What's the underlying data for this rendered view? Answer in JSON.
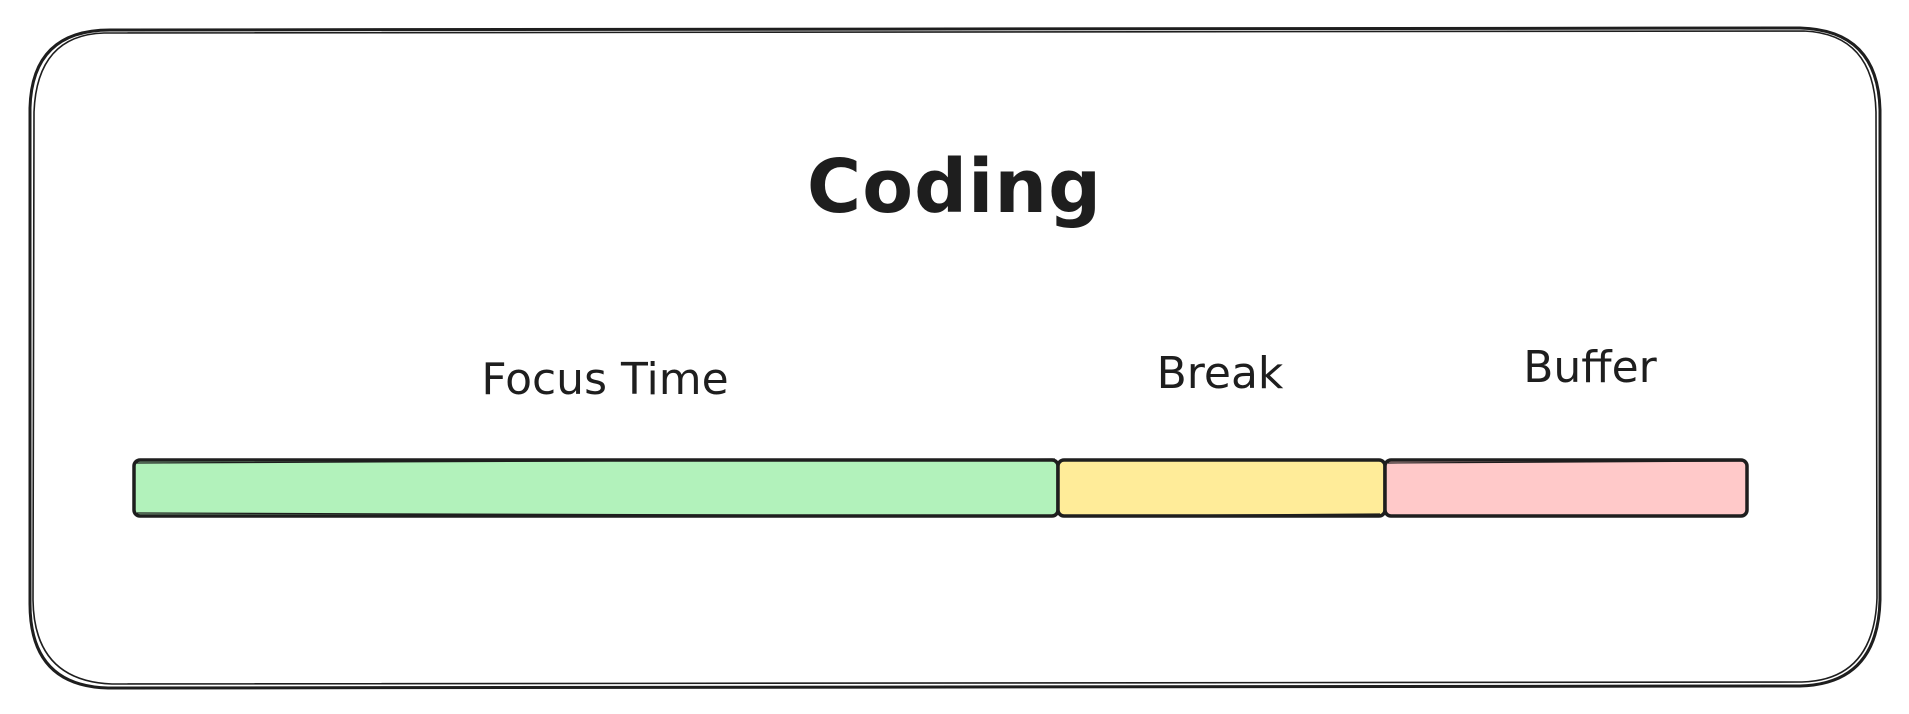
{
  "title": "Coding",
  "segments": [
    {
      "label": "Focus Time",
      "color": "#b2f2bb"
    },
    {
      "label": "Break",
      "color": "#ffec99"
    },
    {
      "label": "Buffer",
      "color": "#ffc9c9"
    }
  ],
  "stroke_color": "#1e1e1e"
}
